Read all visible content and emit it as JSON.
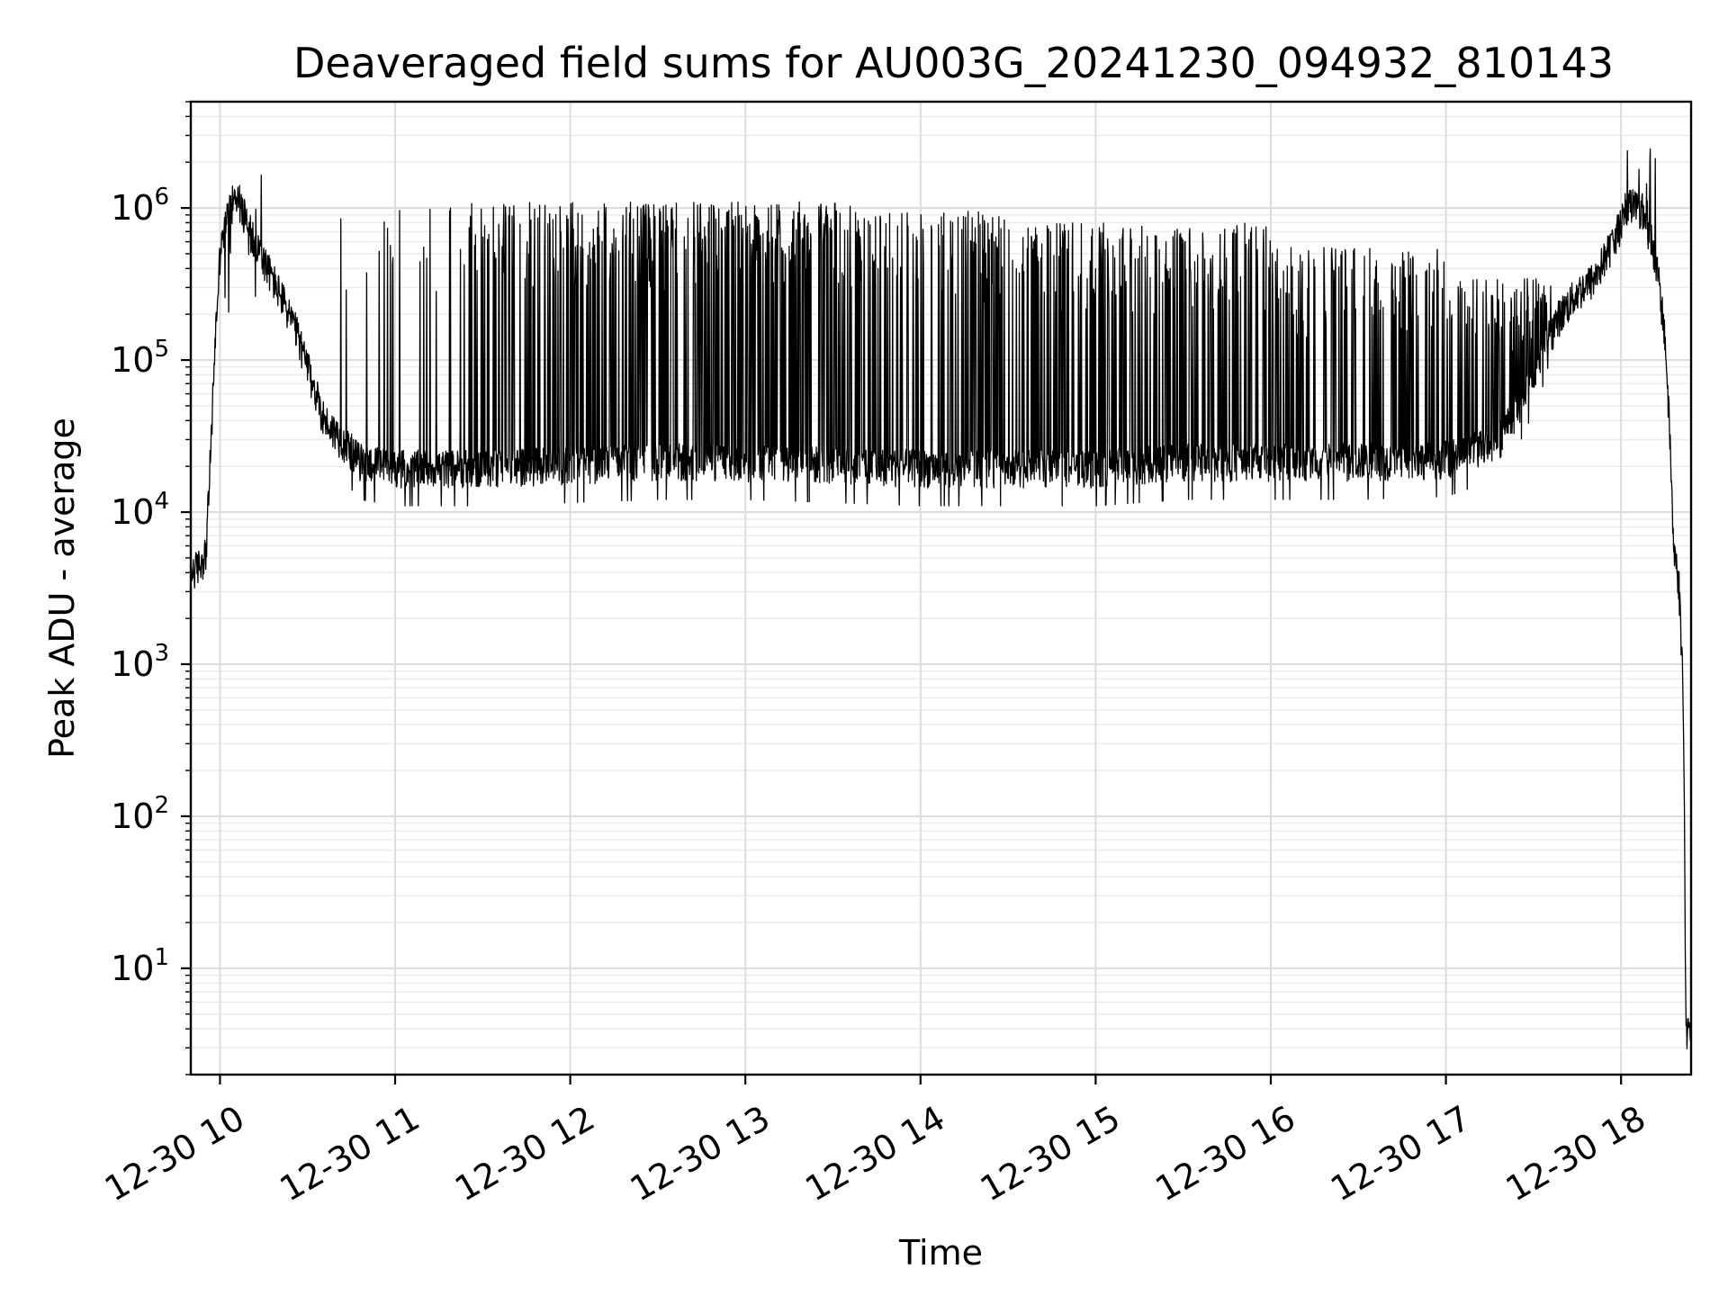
{
  "chart_data": {
    "type": "line",
    "title": "Deaveraged field sums for AU003G_20241230_094932_810143",
    "xlabel": "Time",
    "ylabel": "Peak ADU - average",
    "yscale": "log",
    "grid": "on (major and minor)",
    "x_unit": "hours of 2024-12-30",
    "xlim": [
      "2024-12-30 09:50",
      "2024-12-30 18:24"
    ],
    "ylim": [
      2,
      5000000
    ],
    "x_ticks": [
      {
        "value": "2024-12-30 10:00",
        "label": "12-30 10"
      },
      {
        "value": "2024-12-30 11:00",
        "label": "12-30 11"
      },
      {
        "value": "2024-12-30 12:00",
        "label": "12-30 12"
      },
      {
        "value": "2024-12-30 13:00",
        "label": "12-30 13"
      },
      {
        "value": "2024-12-30 14:00",
        "label": "12-30 14"
      },
      {
        "value": "2024-12-30 15:00",
        "label": "12-30 15"
      },
      {
        "value": "2024-12-30 16:00",
        "label": "12-30 16"
      },
      {
        "value": "2024-12-30 17:00",
        "label": "12-30 17"
      },
      {
        "value": "2024-12-30 18:00",
        "label": "12-30 18"
      }
    ],
    "y_ticks": [
      {
        "value": 10,
        "base": "10",
        "exp": "1"
      },
      {
        "value": 100,
        "base": "10",
        "exp": "2"
      },
      {
        "value": 1000,
        "base": "10",
        "exp": "3"
      },
      {
        "value": 10000,
        "base": "10",
        "exp": "4"
      },
      {
        "value": 100000,
        "base": "10",
        "exp": "5"
      },
      {
        "value": 1000000,
        "base": "10",
        "exp": "6"
      }
    ],
    "series": [
      {
        "color": "#000000",
        "baseline_envelope": {
          "x": [
            9.83,
            9.88,
            9.92,
            9.95,
            9.97,
            10.0,
            10.05,
            10.1,
            10.2,
            10.3,
            10.4,
            10.45,
            10.5,
            10.55,
            10.6,
            10.7,
            10.8,
            11.0,
            11.5,
            12.0,
            12.5,
            13.0,
            13.5,
            14.0,
            14.5,
            15.0,
            15.5,
            16.0,
            16.5,
            17.0,
            17.3,
            17.45,
            17.55,
            17.65,
            17.75,
            17.85,
            17.95,
            18.05,
            18.12,
            18.18,
            18.22,
            18.25,
            18.28,
            18.3,
            18.33,
            18.35,
            18.36,
            18.37,
            18.4
          ],
          "y": [
            4000,
            4500,
            5500,
            30000,
            120000,
            500000,
            1000000,
            1200000,
            600000,
            350000,
            200000,
            140000,
            90000,
            60000,
            40000,
            30000,
            22000,
            20000,
            20000,
            21000,
            22000,
            22000,
            21000,
            20000,
            20000,
            20000,
            22000,
            22000,
            22000,
            23000,
            30000,
            60000,
            120000,
            200000,
            280000,
            350000,
            600000,
            1100000,
            1000000,
            600000,
            300000,
            150000,
            30000,
            6000,
            3500,
            1000,
            200,
            4,
            4
          ]
        },
        "spike_density": "sparse 10.6–11.4, dense 11.4–13.6 (peaks ~1.0e6–1.1e6), moderate 13.6–17.6 (peaks ~3e5–9e5)",
        "spike_peak_max": 1100000,
        "spike_dip_min": 10000
      }
    ]
  }
}
